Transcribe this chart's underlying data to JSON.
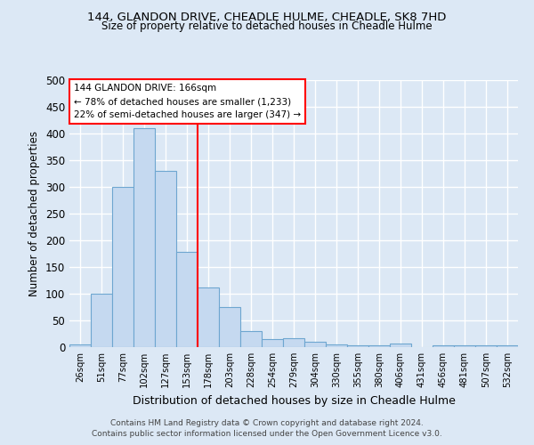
{
  "title1": "144, GLANDON DRIVE, CHEADLE HULME, CHEADLE, SK8 7HD",
  "title2": "Size of property relative to detached houses in Cheadle Hulme",
  "xlabel": "Distribution of detached houses by size in Cheadle Hulme",
  "ylabel": "Number of detached properties",
  "bin_labels": [
    "26sqm",
    "51sqm",
    "77sqm",
    "102sqm",
    "127sqm",
    "153sqm",
    "178sqm",
    "203sqm",
    "228sqm",
    "254sqm",
    "279sqm",
    "304sqm",
    "330sqm",
    "355sqm",
    "380sqm",
    "406sqm",
    "431sqm",
    "456sqm",
    "481sqm",
    "507sqm",
    "532sqm"
  ],
  "bin_values": [
    5,
    100,
    300,
    410,
    330,
    178,
    112,
    75,
    30,
    15,
    17,
    10,
    5,
    4,
    3,
    6,
    0,
    4,
    4,
    3,
    3
  ],
  "bar_color": "#c5d9f0",
  "bar_edge_color": "#6ea6d0",
  "vline_x": 5.5,
  "vline_color": "red",
  "annotation_text": "144 GLANDON DRIVE: 166sqm\n← 78% of detached houses are smaller (1,233)\n22% of semi-detached houses are larger (347) →",
  "annotation_box_color": "white",
  "annotation_box_edge": "red",
  "footer": "Contains HM Land Registry data © Crown copyright and database right 2024.\nContains public sector information licensed under the Open Government Licence v3.0.",
  "ylim": [
    0,
    500
  ],
  "background_color": "#dce8f5"
}
